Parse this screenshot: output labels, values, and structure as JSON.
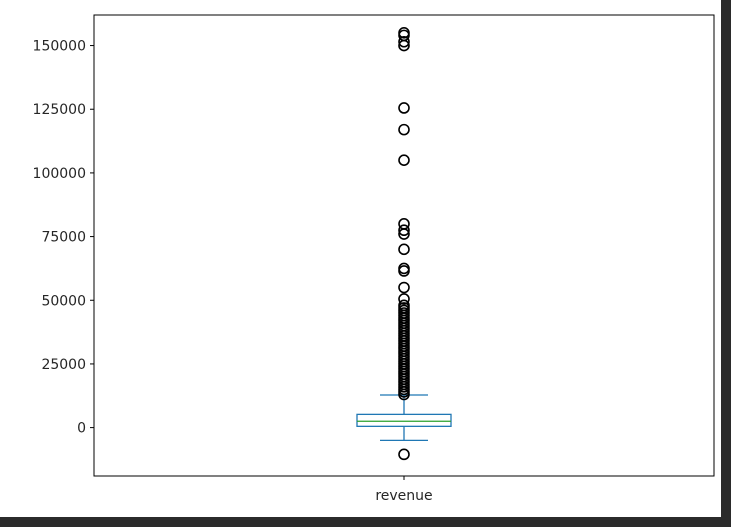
{
  "chart_data": {
    "type": "box",
    "title": "",
    "xlabel": "",
    "ylabel": "",
    "categories": [
      "revenue"
    ],
    "ylim": [
      -19000,
      162000
    ],
    "yticks": [
      0,
      25000,
      50000,
      75000,
      100000,
      125000,
      150000
    ],
    "ytick_labels": [
      "0",
      "25000",
      "50000",
      "75000",
      "100000",
      "125000",
      "150000"
    ],
    "grid": false,
    "series": [
      {
        "category": "revenue",
        "whisker_low": -5000,
        "q1": 500,
        "median": 2500,
        "q3": 5200,
        "whisker_high": 12800,
        "outliers": [
          -10500,
          13000,
          14000,
          15000,
          16000,
          17000,
          18000,
          19000,
          20000,
          21000,
          22000,
          23000,
          24000,
          25000,
          26000,
          27000,
          28000,
          29000,
          30000,
          31000,
          32000,
          33000,
          34000,
          35000,
          36000,
          37000,
          38000,
          39000,
          40000,
          41000,
          42000,
          43000,
          44000,
          45000,
          46000,
          47000,
          48000,
          50500,
          55000,
          61500,
          62500,
          70000,
          76000,
          77500,
          80000,
          105000,
          117000,
          125500,
          150000,
          151500,
          154000,
          155000
        ]
      }
    ],
    "colors": {
      "box": "#1f77b4",
      "median": "#2ca02c",
      "outlier_edge": "#000000",
      "axes": "#000000"
    }
  }
}
